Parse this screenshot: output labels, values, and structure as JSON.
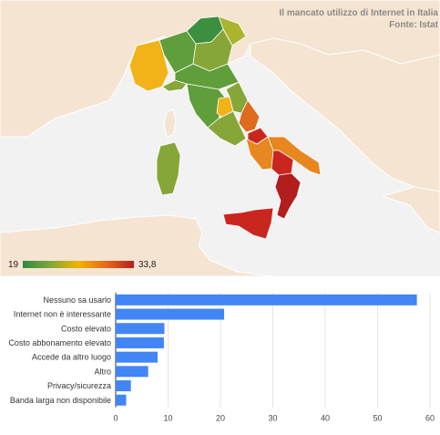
{
  "map": {
    "title_line1": "Il mancato utilizzo di Internet in Italia",
    "title_line2": "Fonte: Istat",
    "legend_min": "19",
    "legend_max": "33,8",
    "colors": {
      "sea": "#f2f2f2",
      "land": "#f5e4d2",
      "dark_green": "#3c8f3f",
      "green": "#5f9e3a",
      "olive": "#86a638",
      "yellow_green": "#aab42e",
      "yellow": "#f1b317",
      "orange": "#e8861f",
      "dark_orange": "#de6b1e",
      "red": "#c9261f",
      "dark_red": "#b21d1d"
    }
  },
  "chart_data": {
    "type": "bar",
    "orientation": "horizontal",
    "categories": [
      "Nessuno sa usarlo",
      "Internet non è interessante",
      "Costo elevato",
      "Costo abbonamento elevato",
      "Accede da altro luogo",
      "Altro",
      "Privacy/sicurezza",
      "Banda larga non disponibile"
    ],
    "values": [
      57.5,
      20.7,
      9.3,
      9.2,
      8.0,
      6.2,
      2.9,
      2.0
    ],
    "xlim": [
      0,
      60
    ],
    "xticks": [
      0,
      10,
      20,
      30,
      40,
      50,
      60
    ],
    "bar_color": "#4285f4",
    "grid": true
  }
}
